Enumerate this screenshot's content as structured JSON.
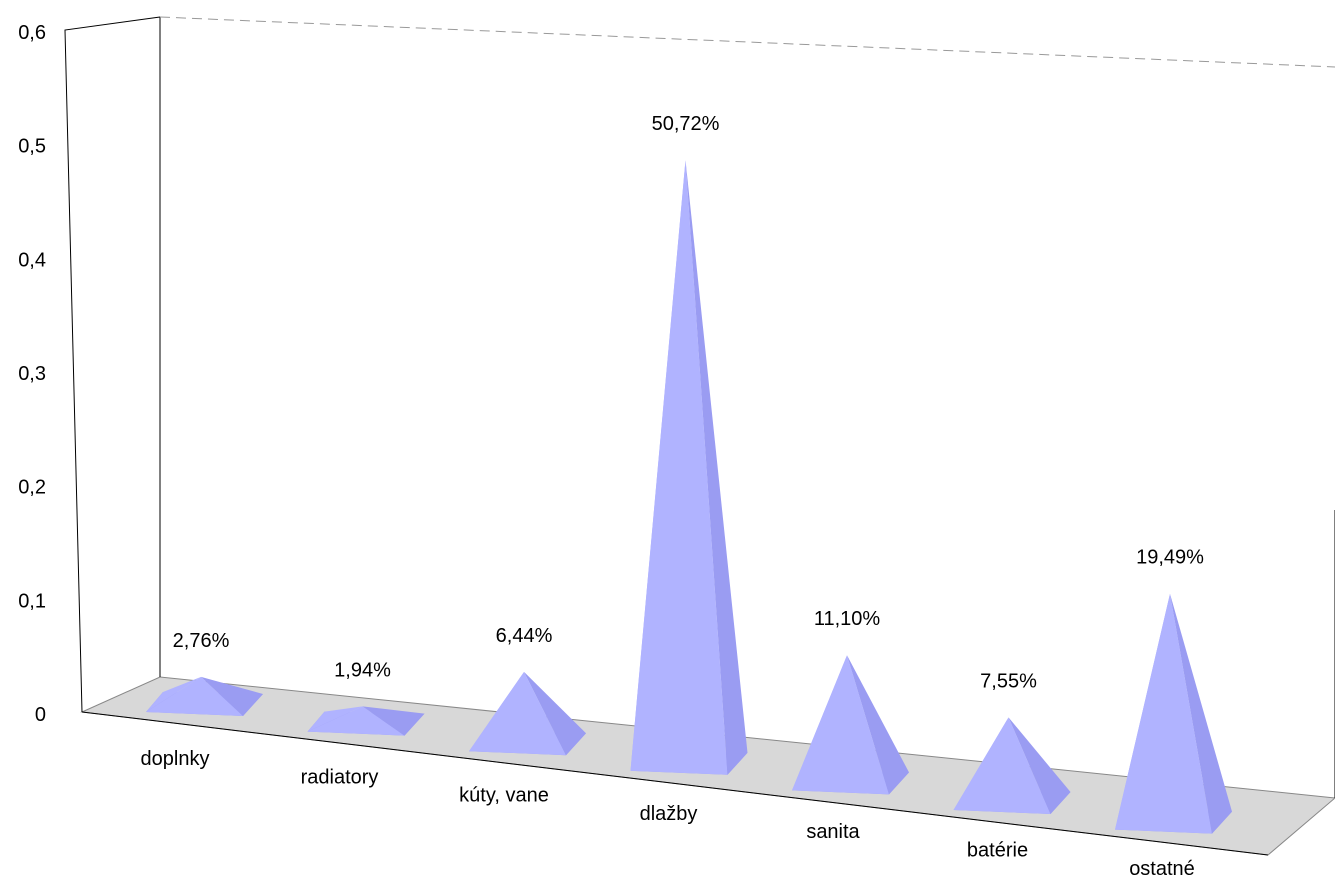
{
  "chart_data": {
    "type": "bar",
    "shape": "3d-pyramid",
    "categories": [
      "doplnky",
      "radiatory",
      "kúty, vane",
      "dlažby",
      "sanita",
      "batérie",
      "ostatné"
    ],
    "values": [
      0.0276,
      0.0194,
      0.0644,
      0.5072,
      0.111,
      0.0755,
      0.1949
    ],
    "data_labels": [
      "2,76%",
      "1,94%",
      "6,44%",
      "50,72%",
      "11,10%",
      "7,55%",
      "19,49%"
    ],
    "y_ticks": [
      "0",
      "0,1",
      "0,2",
      "0,3",
      "0,4",
      "0,5",
      "0,6"
    ],
    "ylim": [
      0,
      0.6
    ],
    "grid": false,
    "legend": "none",
    "colors": {
      "pyramid_front": "#b0b3ff",
      "pyramid_side": "#9a9cf2",
      "floor": "#d8d8d8",
      "axis": "#000000"
    }
  }
}
